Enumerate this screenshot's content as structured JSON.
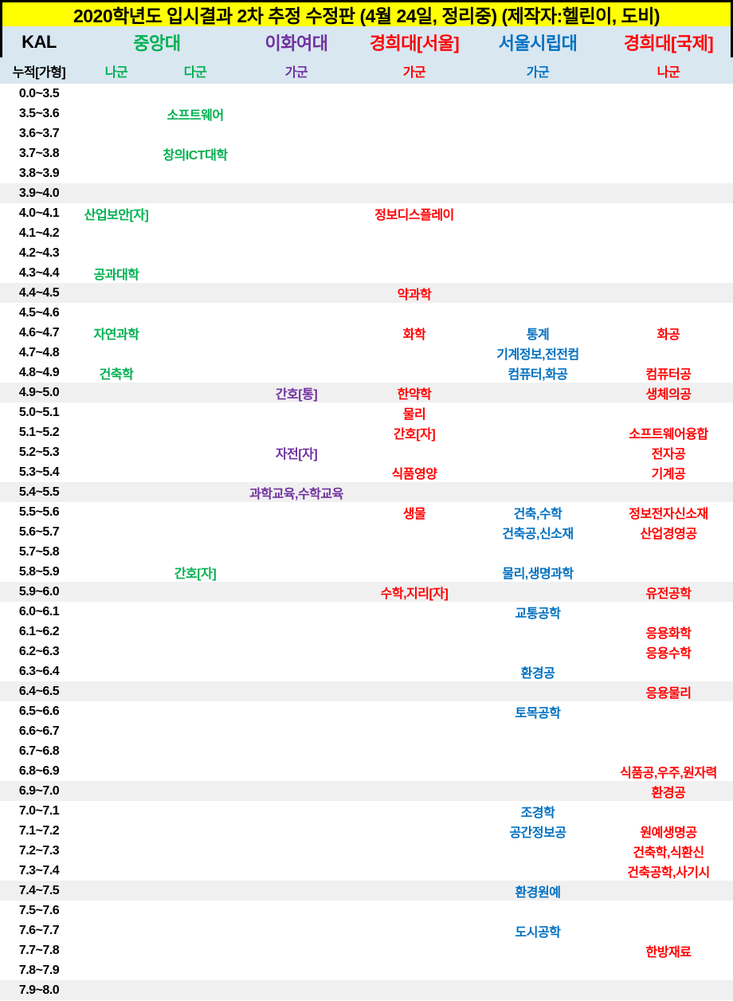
{
  "title": "2020학년도 입시결과 2차 추정 수정판 (4월 24일, 정리중) (제작자:헬린이, 도비)",
  "colors": {
    "title_bg": "#FFFF00",
    "header_bg": "#D9E7F1",
    "stripe": "#F0F0F0",
    "green": "#00B050",
    "purple": "#7030A0",
    "red": "#FF0000",
    "blue": "#0070C0"
  },
  "header": {
    "kal": "KAL",
    "kal_sub": "누적[가형]",
    "universities": [
      {
        "name": "중앙대",
        "color": "green",
        "groups": [
          "나군",
          "다군"
        ]
      },
      {
        "name": "이화여대",
        "color": "purple",
        "groups": [
          "가군"
        ]
      },
      {
        "name": "경희대[서울]",
        "color": "red",
        "groups": [
          "가군"
        ]
      },
      {
        "name": "서울시립대",
        "color": "blue",
        "groups": [
          "가군"
        ]
      },
      {
        "name": "경희대[국제]",
        "color": "red",
        "groups": [
          "나군"
        ]
      }
    ]
  },
  "column_keys": [
    "cau_na",
    "cau_da",
    "ewha",
    "khu_seoul",
    "uos",
    "khu_global"
  ],
  "rows": [
    {
      "range": "0.0~3.5",
      "cells": {}
    },
    {
      "range": "3.5~3.6",
      "cells": {
        "cau_da": "소프트웨어"
      }
    },
    {
      "range": "3.6~3.7",
      "cells": {}
    },
    {
      "range": "3.7~3.8",
      "cells": {
        "cau_da": "창의ICT대학"
      }
    },
    {
      "range": "3.8~3.9",
      "cells": {}
    },
    {
      "range": "3.9~4.0",
      "cells": {}
    },
    {
      "range": "4.0~4.1",
      "cells": {
        "cau_na": "산업보안[자]",
        "khu_seoul": "정보디스플레이"
      }
    },
    {
      "range": "4.1~4.2",
      "cells": {}
    },
    {
      "range": "4.2~4.3",
      "cells": {}
    },
    {
      "range": "4.3~4.4",
      "cells": {
        "cau_na": "공과대학"
      }
    },
    {
      "range": "4.4~4.5",
      "cells": {
        "khu_seoul": "약과학"
      }
    },
    {
      "range": "4.5~4.6",
      "cells": {}
    },
    {
      "range": "4.6~4.7",
      "cells": {
        "cau_na": "자연과학",
        "khu_seoul": "화학",
        "uos": "통계",
        "khu_global": "화공"
      }
    },
    {
      "range": "4.7~4.8",
      "cells": {
        "uos": "기계정보,전전컴"
      }
    },
    {
      "range": "4.8~4.9",
      "cells": {
        "cau_na": "건축학",
        "uos": "컴퓨터,화공",
        "khu_global": "컴퓨터공"
      }
    },
    {
      "range": "4.9~5.0",
      "cells": {
        "ewha": "간호[통]",
        "khu_seoul": "한약학",
        "khu_global": "생체의공"
      }
    },
    {
      "range": "5.0~5.1",
      "cells": {
        "khu_seoul": "물리"
      }
    },
    {
      "range": "5.1~5.2",
      "cells": {
        "khu_seoul": "간호[자]",
        "khu_global": "소프트웨어융합"
      }
    },
    {
      "range": "5.2~5.3",
      "cells": {
        "ewha": "자전[자]",
        "khu_global": "전자공"
      }
    },
    {
      "range": "5.3~5.4",
      "cells": {
        "khu_seoul": "식품영양",
        "khu_global": "기계공"
      }
    },
    {
      "range": "5.4~5.5",
      "cells": {
        "ewha": "과학교육,수학교육"
      }
    },
    {
      "range": "5.5~5.6",
      "cells": {
        "khu_seoul": "생물",
        "uos": "건축,수학",
        "khu_global": "정보전자신소재"
      }
    },
    {
      "range": "5.6~5.7",
      "cells": {
        "uos": "건축공,신소재",
        "khu_global": "산업경영공"
      }
    },
    {
      "range": "5.7~5.8",
      "cells": {}
    },
    {
      "range": "5.8~5.9",
      "cells": {
        "cau_da": "간호[자]",
        "uos": "물리,생명과학"
      }
    },
    {
      "range": "5.9~6.0",
      "cells": {
        "khu_seoul": "수학,지리[자]",
        "khu_global": "유전공학"
      }
    },
    {
      "range": "6.0~6.1",
      "cells": {
        "uos": "교통공학"
      }
    },
    {
      "range": "6.1~6.2",
      "cells": {
        "khu_global": "응용화학"
      }
    },
    {
      "range": "6.2~6.3",
      "cells": {
        "khu_global": "응용수학"
      }
    },
    {
      "range": "6.3~6.4",
      "cells": {
        "uos": "환경공"
      }
    },
    {
      "range": "6.4~6.5",
      "cells": {
        "khu_global": "응용물리"
      }
    },
    {
      "range": "6.5~6.6",
      "cells": {
        "uos": "토목공학"
      }
    },
    {
      "range": "6.6~6.7",
      "cells": {}
    },
    {
      "range": "6.7~6.8",
      "cells": {}
    },
    {
      "range": "6.8~6.9",
      "cells": {
        "khu_global": "식품공,우주,원자력"
      }
    },
    {
      "range": "6.9~7.0",
      "cells": {
        "khu_global": "환경공"
      }
    },
    {
      "range": "7.0~7.1",
      "cells": {
        "uos": "조경학"
      }
    },
    {
      "range": "7.1~7.2",
      "cells": {
        "uos": "공간정보공",
        "khu_global": "원예생명공"
      }
    },
    {
      "range": "7.2~7.3",
      "cells": {
        "khu_global": "건축학,식환신"
      }
    },
    {
      "range": "7.3~7.4",
      "cells": {
        "khu_global": "건축공학,사기시"
      }
    },
    {
      "range": "7.4~7.5",
      "cells": {
        "uos": "환경원예"
      }
    },
    {
      "range": "7.5~7.6",
      "cells": {}
    },
    {
      "range": "7.6~7.7",
      "cells": {
        "uos": "도시공학"
      }
    },
    {
      "range": "7.7~7.8",
      "cells": {
        "khu_global": "한방재료"
      }
    },
    {
      "range": "7.8~7.9",
      "cells": {}
    },
    {
      "range": "7.9~8.0",
      "cells": {}
    }
  ]
}
